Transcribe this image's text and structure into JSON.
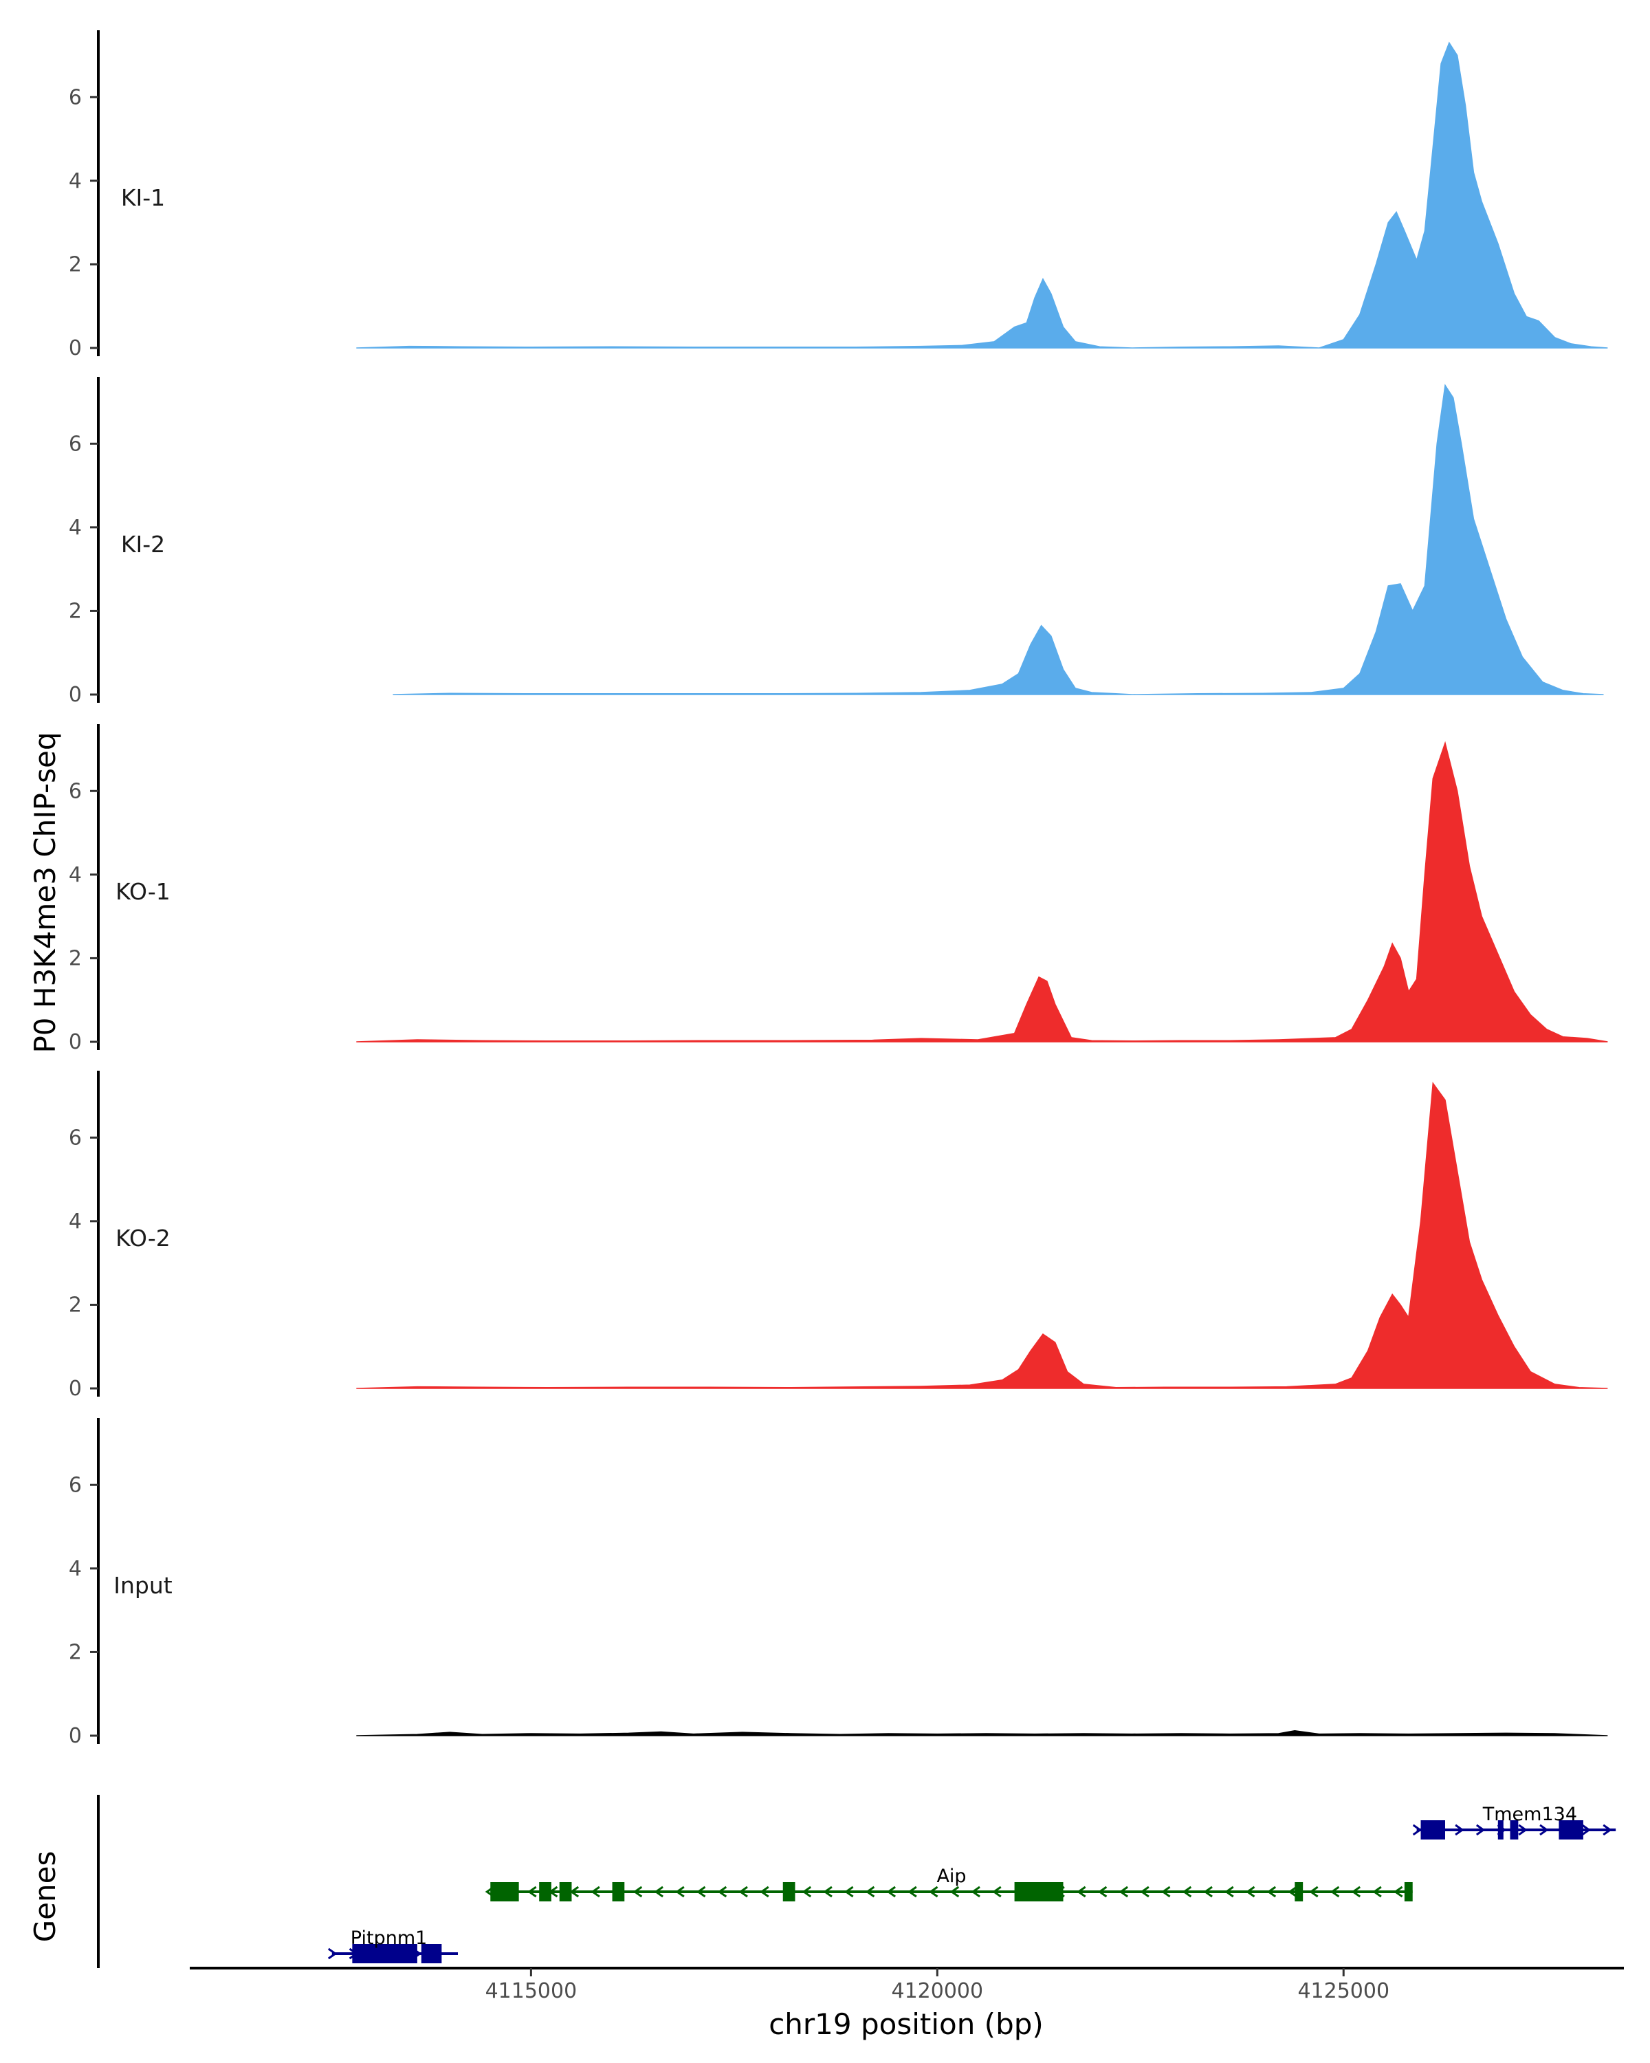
{
  "chart_data": {
    "type": "area",
    "ylabel": "P0 H3K4me3 ChIP-seq",
    "xlabel": "chr19 position (bp)",
    "genes_label": "Genes",
    "xlim": [
      4110800,
      4128450
    ],
    "ylim": [
      0,
      7.6
    ],
    "yticks": [
      0,
      2,
      4,
      6
    ],
    "xticks": [
      4115000,
      4120000,
      4125000
    ],
    "xtick_labels": [
      "4115000",
      "4120000",
      "4125000"
    ],
    "tracks": [
      {
        "name": "KI-1",
        "color": "#5aaceb",
        "x": [
          4112850,
          4113500,
          4114150,
          4115000,
          4116000,
          4117000,
          4118000,
          4119000,
          4119800,
          4120300,
          4120700,
          4120950,
          4121100,
          4121200,
          4121300,
          4121400,
          4121550,
          4121700,
          4122000,
          4122400,
          4123000,
          4123600,
          4124200,
          4124700,
          4125000,
          4125200,
          4125400,
          4125550,
          4125650,
          4125750,
          4125900,
          4126000,
          4126100,
          4126200,
          4126300,
          4126400,
          4126500,
          4126600,
          4126700,
          4126900,
          4127100,
          4127250,
          4127400,
          4127600,
          4127800,
          4128050,
          4128250
        ],
        "y": [
          0,
          0.04,
          0.03,
          0.02,
          0.03,
          0.02,
          0.02,
          0.02,
          0.04,
          0.06,
          0.15,
          0.5,
          0.6,
          1.2,
          1.65,
          1.3,
          0.5,
          0.15,
          0.03,
          0,
          0.02,
          0.03,
          0.05,
          0,
          0.2,
          0.8,
          2.0,
          3.0,
          3.25,
          2.8,
          2.1,
          2.8,
          4.8,
          6.8,
          7.3,
          7.0,
          5.8,
          4.2,
          3.5,
          2.5,
          1.3,
          0.75,
          0.65,
          0.25,
          0.1,
          0.03,
          0
        ]
      },
      {
        "name": "KI-2",
        "color": "#5aaceb",
        "x": [
          4113300,
          4114000,
          4115000,
          4116000,
          4117000,
          4118000,
          4119000,
          4119800,
          4120400,
          4120800,
          4121000,
          4121150,
          4121280,
          4121400,
          4121550,
          4121700,
          4121900,
          4122200,
          4122400,
          4123200,
          4124000,
          4124600,
          4125000,
          4125200,
          4125400,
          4125550,
          4125700,
          4125850,
          4126000,
          4126150,
          4126250,
          4126350,
          4126450,
          4126600,
          4126800,
          4127000,
          4127200,
          4127450,
          4127700,
          4127950,
          4128200
        ],
        "y": [
          0,
          0.03,
          0.02,
          0.02,
          0.02,
          0.02,
          0.03,
          0.05,
          0.1,
          0.25,
          0.5,
          1.2,
          1.65,
          1.4,
          0.6,
          0.15,
          0.05,
          0.02,
          0,
          0.02,
          0.03,
          0.05,
          0.15,
          0.5,
          1.5,
          2.6,
          2.65,
          2.0,
          2.6,
          6.0,
          7.4,
          7.1,
          6.0,
          4.2,
          3.0,
          1.8,
          0.9,
          0.3,
          0.1,
          0.02,
          0
        ]
      },
      {
        "name": "KO-1",
        "color": "#ee2c2c",
        "x": [
          4112850,
          4113600,
          4114400,
          4115200,
          4116200,
          4117200,
          4118200,
          4119200,
          4119800,
          4120500,
          4120950,
          4121100,
          4121250,
          4121350,
          4121450,
          4121650,
          4121900,
          4122400,
          4123000,
          4123600,
          4124200,
          4124900,
          4125100,
          4125300,
          4125500,
          4125600,
          4125700,
          4125800,
          4125900,
          4126000,
          4126100,
          4126250,
          4126400,
          4126550,
          4126700,
          4126900,
          4127100,
          4127300,
          4127500,
          4127700,
          4128000,
          4128250
        ],
        "y": [
          0,
          0.05,
          0.03,
          0.02,
          0.02,
          0.03,
          0.03,
          0.04,
          0.08,
          0.05,
          0.2,
          0.9,
          1.55,
          1.45,
          0.9,
          0.1,
          0.03,
          0.02,
          0.03,
          0.03,
          0.05,
          0.1,
          0.3,
          1.0,
          1.8,
          2.35,
          2.0,
          1.2,
          1.5,
          4.0,
          6.3,
          7.15,
          6.0,
          4.2,
          3.0,
          2.1,
          1.2,
          0.65,
          0.3,
          0.12,
          0.08,
          0
        ]
      },
      {
        "name": "KO-2",
        "color": "#ee2c2c",
        "x": [
          4112850,
          4113600,
          4114400,
          4115200,
          4116200,
          4117200,
          4118200,
          4119200,
          4119800,
          4120400,
          4120800,
          4121000,
          4121150,
          4121300,
          4121450,
          4121600,
          4121800,
          4122200,
          4122800,
          4123600,
          4124300,
          4124900,
          4125100,
          4125300,
          4125450,
          4125600,
          4125700,
          4125800,
          4125950,
          4126100,
          4126250,
          4126400,
          4126550,
          4126700,
          4126900,
          4127100,
          4127300,
          4127600,
          4127900,
          4128250
        ],
        "y": [
          0,
          0.04,
          0.03,
          0.02,
          0.03,
          0.03,
          0.02,
          0.04,
          0.05,
          0.08,
          0.2,
          0.45,
          0.9,
          1.3,
          1.1,
          0.4,
          0.1,
          0.02,
          0.03,
          0.03,
          0.04,
          0.1,
          0.25,
          0.9,
          1.7,
          2.25,
          2.0,
          1.7,
          4.0,
          7.3,
          6.9,
          5.2,
          3.5,
          2.6,
          1.75,
          1.0,
          0.4,
          0.1,
          0.02,
          0
        ]
      },
      {
        "name": "Input",
        "color": "#000000",
        "x": [
          4112850,
          4113600,
          4114000,
          4114400,
          4115000,
          4115600,
          4116200,
          4116600,
          4117000,
          4117600,
          4118200,
          4118800,
          4119400,
          4120000,
          4120600,
          4121200,
          4121800,
          4122400,
          4123000,
          4123600,
          4124200,
          4124400,
          4124700,
          4125200,
          4125800,
          4126400,
          4127000,
          4127600,
          4128250
        ],
        "y": [
          0,
          0.03,
          0.08,
          0.03,
          0.05,
          0.04,
          0.06,
          0.09,
          0.04,
          0.08,
          0.05,
          0.03,
          0.05,
          0.04,
          0.05,
          0.04,
          0.05,
          0.04,
          0.05,
          0.04,
          0.05,
          0.12,
          0.04,
          0.05,
          0.04,
          0.05,
          0.06,
          0.05,
          0
        ]
      }
    ],
    "genes": [
      {
        "name": "Tmem134",
        "strand": "+",
        "color": "#00008b",
        "start": 4125900,
        "end": 4128350,
        "exons": [
          [
            4125950,
            4126250
          ],
          [
            4126900,
            4126950
          ],
          [
            4127050,
            4127150
          ],
          [
            4127650,
            4127950
          ]
        ]
      },
      {
        "name": "Aip",
        "strand": "-",
        "color": "#006400",
        "start": 4114500,
        "end": 4125850,
        "exons": [
          [
            4114500,
            4114850
          ],
          [
            4115100,
            4115250
          ],
          [
            4115350,
            4115500
          ],
          [
            4116000,
            4116150
          ],
          [
            4118100,
            4118250
          ],
          [
            4120950,
            4121550
          ],
          [
            4124400,
            4124500
          ],
          [
            4125750,
            4125850
          ]
        ]
      },
      {
        "name": "Pitpnm1",
        "strand": "+",
        "color": "#00008b",
        "start": 4112550,
        "end": 4114100,
        "exons": [
          [
            4112800,
            4113600
          ],
          [
            4113650,
            4113900
          ]
        ]
      }
    ]
  }
}
